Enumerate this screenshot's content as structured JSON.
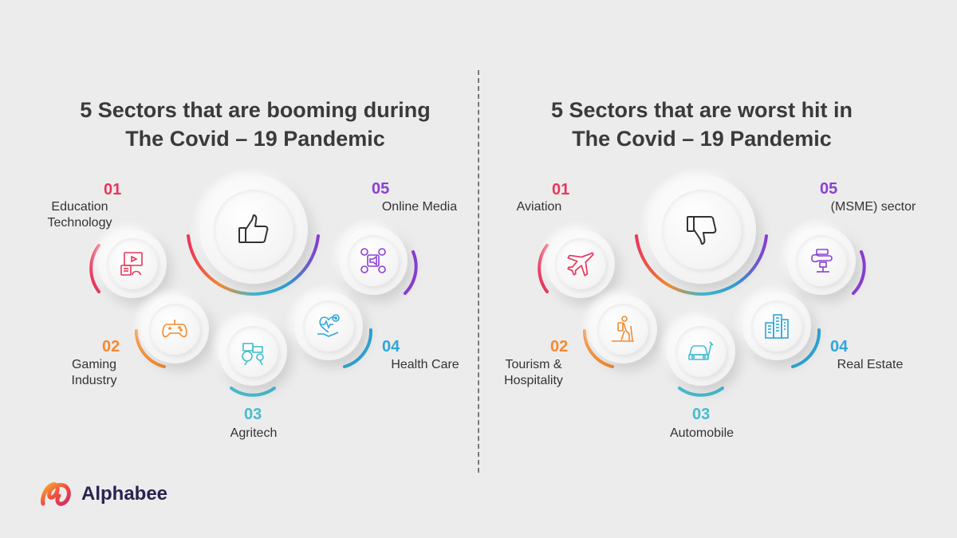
{
  "left": {
    "title_line1": "5 Sectors that are booming during",
    "title_line2": "The Covid – 19 Pandemic",
    "center_icon": "thumbs-up-icon",
    "items": [
      {
        "num": "01",
        "line1": "Education",
        "line2": "Technology",
        "icon": "video-education-icon",
        "color": "#e8365a"
      },
      {
        "num": "02",
        "line1": "Gaming",
        "line2": "Industry",
        "icon": "gamepad-icon",
        "color": "#f58a2e"
      },
      {
        "num": "03",
        "line1": "Agritech",
        "icon": "tractor-icon",
        "color": "#45bcd0"
      },
      {
        "num": "04",
        "line1": "Health Care",
        "icon": "health-heart-icon",
        "color": "#2ea6d8"
      },
      {
        "num": "05",
        "line1": "Online Media",
        "icon": "social-media-icon",
        "color": "#8a3fd6"
      }
    ]
  },
  "right": {
    "title_line1": "5 Sectors that are worst hit in",
    "title_line2": "The Covid – 19 Pandemic",
    "center_icon": "thumbs-down-icon",
    "items": [
      {
        "num": "01",
        "line1": "Aviation",
        "icon": "airplane-icon",
        "color": "#e8365a"
      },
      {
        "num": "02",
        "line1": "Tourism &",
        "line2": "Hospitality",
        "icon": "hiker-icon",
        "color": "#f58a2e"
      },
      {
        "num": "03",
        "line1": "Automobile",
        "icon": "car-wrench-icon",
        "color": "#45bcd0"
      },
      {
        "num": "04",
        "line1": "Real Estate",
        "icon": "buildings-icon",
        "color": "#2ea6d8"
      },
      {
        "num": "05",
        "line1": "(MSME) sector",
        "icon": "machine-icon",
        "color": "#8a3fd6"
      }
    ]
  },
  "brand": {
    "name": "Alphabee",
    "logo_icon": "alphabee-logo-icon"
  }
}
